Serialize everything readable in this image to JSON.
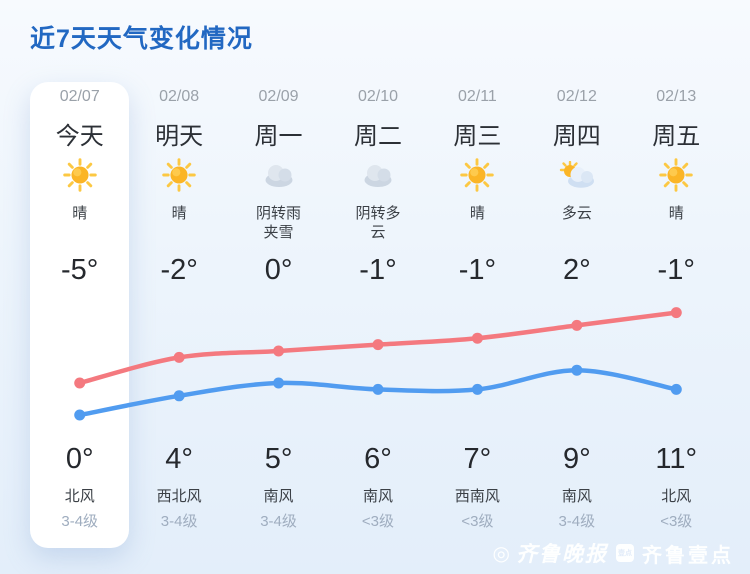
{
  "title": "近7天天气变化情况",
  "columns": [
    {
      "date": "02/07",
      "day": "今天",
      "icon": "sun",
      "desc": "晴",
      "temp_top": "-5°",
      "temp_bottom": "0°",
      "wind": "北风",
      "wind_level": "3-4级"
    },
    {
      "date": "02/08",
      "day": "明天",
      "icon": "sun",
      "desc": "晴",
      "temp_top": "-2°",
      "temp_bottom": "4°",
      "wind": "西北风",
      "wind_level": "3-4级"
    },
    {
      "date": "02/09",
      "day": "周一",
      "icon": "cloud",
      "desc": "阴转雨夹雪",
      "temp_top": "0°",
      "temp_bottom": "5°",
      "wind": "南风",
      "wind_level": "3-4级"
    },
    {
      "date": "02/10",
      "day": "周二",
      "icon": "cloud",
      "desc": "阴转多云",
      "temp_top": "-1°",
      "temp_bottom": "6°",
      "wind": "南风",
      "wind_level": "<3级"
    },
    {
      "date": "02/11",
      "day": "周三",
      "icon": "sun",
      "desc": "晴",
      "temp_top": "-1°",
      "temp_bottom": "7°",
      "wind": "西南风",
      "wind_level": "<3级"
    },
    {
      "date": "02/12",
      "day": "周四",
      "icon": "sun-cloud",
      "desc": "多云",
      "temp_top": "2°",
      "temp_bottom": "9°",
      "wind": "南风",
      "wind_level": "3-4级"
    },
    {
      "date": "02/13",
      "day": "周五",
      "icon": "sun",
      "desc": "晴",
      "temp_top": "-1°",
      "temp_bottom": "11°",
      "wind": "北风",
      "wind_level": "<3级"
    }
  ],
  "chart_data": {
    "type": "line",
    "categories": [
      "02/07",
      "02/08",
      "02/09",
      "02/10",
      "02/11",
      "02/12",
      "02/13"
    ],
    "series": [
      {
        "name": "bottom-row-temps-red-line",
        "color": "#f4797f",
        "values": [
          0,
          4,
          5,
          6,
          7,
          9,
          11
        ]
      },
      {
        "name": "top-row-temps-blue-line",
        "color": "#519cf0",
        "values": [
          -5,
          -2,
          0,
          -1,
          -1,
          2,
          -1
        ]
      }
    ],
    "grid": false,
    "legend": "none"
  },
  "watermark": {
    "logo_mark": "◎",
    "newspaper": "齐鲁晚报",
    "badge": "壹点",
    "app": "齐鲁壹点"
  },
  "colors": {
    "title": "#2268c2",
    "card": "#ffffff",
    "high_line": "#f4797f",
    "low_line": "#519cf0"
  }
}
